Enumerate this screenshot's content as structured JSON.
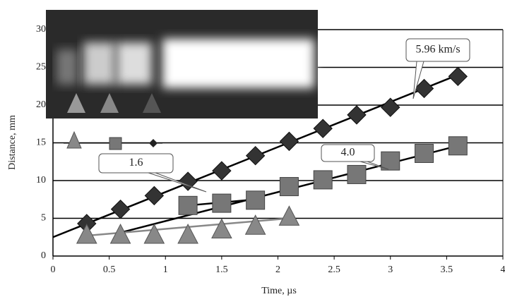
{
  "chart_data": {
    "type": "scatter",
    "xlabel": "Time, µs",
    "ylabel": "Distance, mm",
    "xlim": [
      0,
      4
    ],
    "xticks": [
      0,
      0.5,
      1,
      1.5,
      2,
      2.5,
      3,
      3.5,
      4
    ],
    "ylim": [
      0,
      30
    ],
    "yticks": [
      0,
      5,
      10,
      15,
      20,
      25,
      30
    ],
    "grid": true,
    "series": [
      {
        "marker": "diamond",
        "color": "#333333",
        "x": [
          0.3,
          0.6,
          0.9,
          1.2,
          1.5,
          1.8,
          2.1,
          2.4,
          2.7,
          3.0,
          3.3,
          3.6
        ],
        "values": [
          4.3,
          6.2,
          8.0,
          9.9,
          11.3,
          13.3,
          15.2,
          16.9,
          18.7,
          19.7,
          22.2,
          23.8
        ]
      },
      {
        "marker": "square",
        "color": "#777777",
        "x": [
          1.2,
          1.5,
          1.8,
          2.1,
          2.4,
          2.7,
          3.0,
          3.3,
          3.6
        ],
        "values": [
          6.7,
          7.0,
          7.4,
          9.2,
          10.1,
          10.8,
          12.6,
          13.6,
          14.6
        ]
      },
      {
        "marker": "triangle",
        "color": "#888888",
        "x": [
          0.3,
          0.6,
          0.9,
          1.2,
          1.5,
          1.8,
          2.1
        ],
        "values": [
          2.8,
          2.8,
          2.8,
          2.8,
          3.5,
          4.0,
          5.2
        ]
      }
    ],
    "fits": [
      {
        "color": "#000000",
        "x": [
          0,
          3.6
        ],
        "values": [
          2.5,
          24.0
        ]
      },
      {
        "color": "#000000",
        "x": [
          0.6,
          3.65
        ],
        "values": [
          3.1,
          14.8
        ]
      },
      {
        "color": "#000000",
        "x": [
          1.2,
          1.8
        ],
        "values": [
          6.7,
          7.5
        ]
      },
      {
        "color": "#888888",
        "x": [
          0.3,
          2.1
        ],
        "values": [
          2.7,
          5.0
        ]
      }
    ],
    "annotations": [
      "5.96 km/s",
      "4.0",
      "1.6"
    ]
  }
}
